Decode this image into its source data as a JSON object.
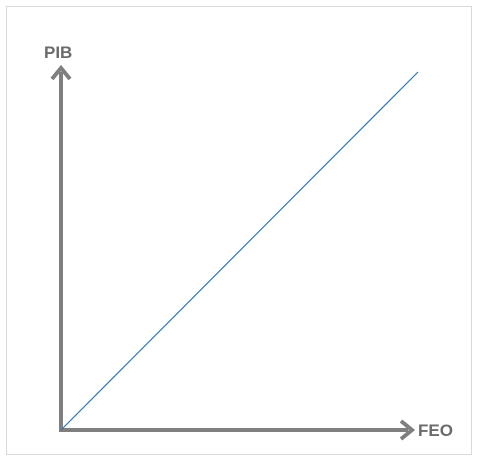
{
  "diagram": {
    "y_axis_label": "PIB",
    "x_axis_label": "FEO",
    "colors": {
      "axis": "#7f7f7f",
      "label": "#6b6b6b",
      "line": "#2e75b6",
      "frame": "#d9d9d9"
    }
  }
}
